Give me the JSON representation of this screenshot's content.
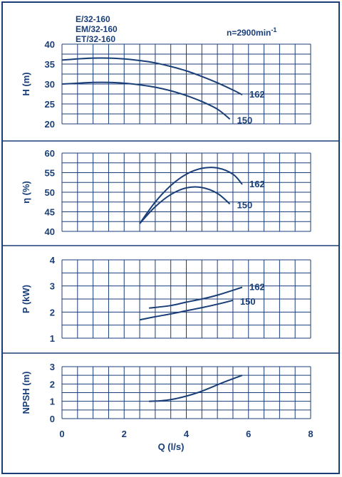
{
  "header": {
    "models": [
      "E/32-160",
      "EM/32-160",
      "ET/32-160"
    ],
    "speed": "n=2900min",
    "speed_exp": "-1"
  },
  "colors": {
    "ink": "#1a3e78",
    "background": "#ffffff",
    "frame": "#1a3e78"
  },
  "chart_data": [
    {
      "type": "line",
      "id": "head",
      "ylabel": "H (m)",
      "ylim": [
        20,
        40
      ],
      "yticks": [
        20,
        25,
        30,
        35,
        40
      ],
      "xlim": [
        0,
        8
      ],
      "grid": true,
      "series": [
        {
          "name": "162",
          "x": [
            0,
            0.5,
            1,
            1.5,
            2,
            2.5,
            3,
            3.5,
            4,
            4.5,
            5,
            5.5,
            5.8
          ],
          "values": [
            36,
            36.3,
            36.5,
            36.5,
            36.3,
            35.9,
            35.3,
            34.4,
            33.3,
            31.9,
            30.3,
            28.5,
            27.3
          ]
        },
        {
          "name": "150",
          "x": [
            0,
            0.5,
            1,
            1.5,
            2,
            2.5,
            3,
            3.5,
            4,
            4.5,
            5,
            5.4
          ],
          "values": [
            30,
            30.2,
            30.4,
            30.4,
            30.2,
            29.8,
            29.2,
            28.3,
            27.1,
            25.6,
            23.7,
            21.2
          ]
        }
      ]
    },
    {
      "type": "line",
      "id": "efficiency",
      "ylabel": "η (%)",
      "ylim": [
        40,
        60
      ],
      "yticks": [
        40,
        45,
        50,
        55,
        60
      ],
      "xlim": [
        0,
        8
      ],
      "grid": true,
      "series": [
        {
          "name": "162",
          "x": [
            2.5,
            3,
            3.5,
            4,
            4.5,
            5,
            5.5,
            5.8
          ],
          "values": [
            42,
            47.5,
            51.7,
            54.6,
            56.1,
            56.2,
            54.6,
            52
          ]
        },
        {
          "name": "150",
          "x": [
            2.5,
            3,
            3.5,
            4,
            4.5,
            5,
            5.4
          ],
          "values": [
            42,
            46.3,
            49.4,
            51.1,
            51.2,
            49.7,
            47
          ]
        }
      ]
    },
    {
      "type": "line",
      "id": "power",
      "ylabel": "P (kW)",
      "ylim": [
        1,
        4
      ],
      "yticks": [
        1,
        2,
        3,
        4
      ],
      "xlim": [
        0,
        8
      ],
      "grid": true,
      "series": [
        {
          "name": "162",
          "x": [
            2.8,
            3.5,
            4,
            4.5,
            5,
            5.8
          ],
          "values": [
            2.15,
            2.25,
            2.38,
            2.5,
            2.65,
            2.95
          ]
        },
        {
          "name": "150",
          "x": [
            2.5,
            3,
            3.5,
            4,
            4.5,
            5,
            5.5
          ],
          "values": [
            1.7,
            1.82,
            1.93,
            2.05,
            2.17,
            2.3,
            2.45
          ]
        }
      ]
    },
    {
      "type": "line",
      "id": "npsh",
      "ylabel": "NPSH (m)",
      "ylim": [
        0,
        3
      ],
      "yticks": [
        0,
        1,
        2,
        3
      ],
      "xlim": [
        0,
        8
      ],
      "xticks": [
        0,
        2,
        4,
        6,
        8
      ],
      "xlabel": "Q (l/s)",
      "grid": true,
      "series": [
        {
          "x": [
            2.8,
            3.2,
            3.6,
            4,
            4.4,
            4.8,
            5.2,
            5.8
          ],
          "values": [
            1.0,
            1.03,
            1.13,
            1.3,
            1.52,
            1.8,
            2.1,
            2.5
          ]
        }
      ]
    }
  ]
}
